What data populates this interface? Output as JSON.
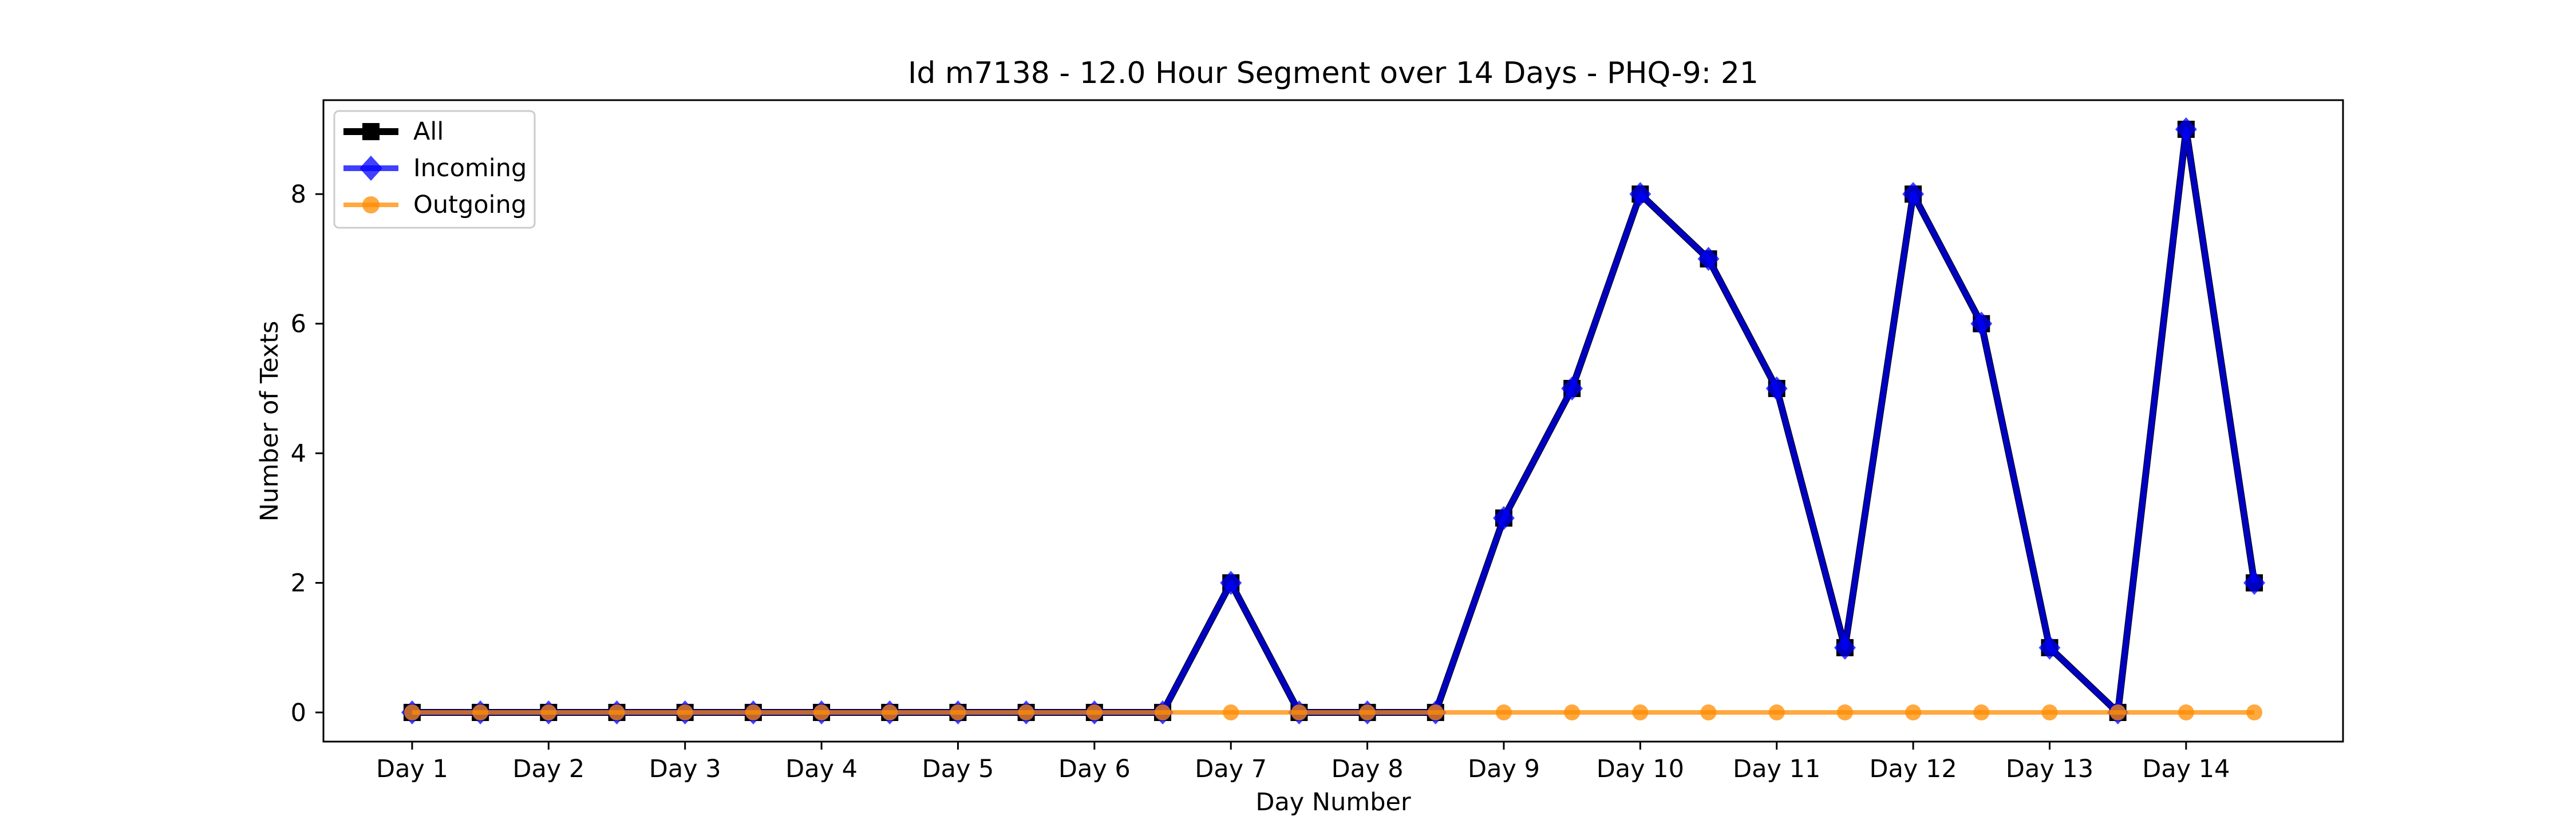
{
  "chart_data": {
    "type": "line",
    "title": "Id m7138 - 12.0 Hour Segment over 14 Days - PHQ-9: 21",
    "xlabel": "Day Number",
    "ylabel": "Number of Texts",
    "x_tick_labels": [
      "Day 1",
      "Day 2",
      "Day 3",
      "Day 4",
      "Day 5",
      "Day 6",
      "Day 7",
      "Day 8",
      "Day 9",
      "Day 10",
      "Day 11",
      "Day 12",
      "Day 13",
      "Day 14"
    ],
    "y_ticks": [
      0,
      2,
      4,
      6,
      8
    ],
    "ylim": [
      -0.45,
      9.45
    ],
    "grid": false,
    "legend_position": "top-left",
    "x": [
      1,
      1.5,
      2,
      2.5,
      3,
      3.5,
      4,
      4.5,
      5,
      5.5,
      6,
      6.5,
      7,
      7.5,
      8,
      8.5,
      9,
      9.5,
      10,
      10.5,
      11,
      11.5,
      12,
      12.5,
      13,
      13.5,
      14,
      14.5
    ],
    "series": [
      {
        "name": "All",
        "color": "#000000",
        "marker": "square",
        "values": [
          0,
          0,
          0,
          0,
          0,
          0,
          0,
          0,
          0,
          0,
          0,
          0,
          2,
          0,
          0,
          0,
          3,
          5,
          8,
          7,
          5,
          1,
          8,
          6,
          1,
          0,
          9,
          2
        ]
      },
      {
        "name": "Incoming",
        "color": "#0000ff",
        "marker": "diamond",
        "values": [
          0,
          0,
          0,
          0,
          0,
          0,
          0,
          0,
          0,
          0,
          0,
          0,
          2,
          0,
          0,
          0,
          3,
          5,
          8,
          7,
          5,
          1,
          8,
          6,
          1,
          0,
          9,
          2
        ]
      },
      {
        "name": "Outgoing",
        "color": "#ff8c00",
        "marker": "circle",
        "values": [
          0,
          0,
          0,
          0,
          0,
          0,
          0,
          0,
          0,
          0,
          0,
          0,
          0,
          0,
          0,
          0,
          0,
          0,
          0,
          0,
          0,
          0,
          0,
          0,
          0,
          0,
          0,
          0
        ]
      }
    ]
  }
}
